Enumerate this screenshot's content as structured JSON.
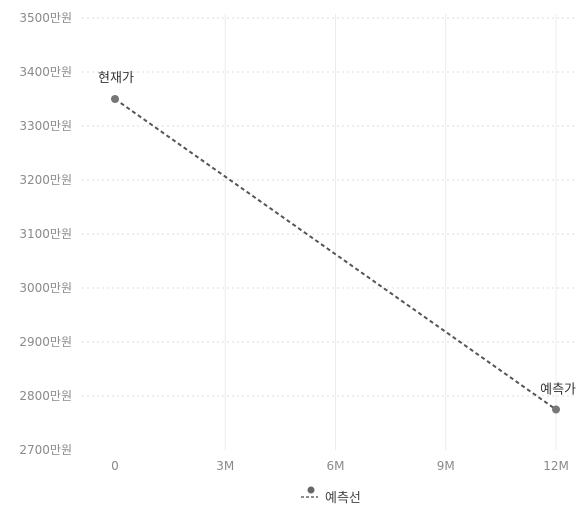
{
  "chart_data": {
    "type": "line",
    "x_ticks": [
      "0",
      "3M",
      "6M",
      "9M",
      "12M"
    ],
    "y_ticks": [
      "2700만원",
      "2800만원",
      "2900만원",
      "3000만원",
      "3100만원",
      "3200만원",
      "3300만원",
      "3400만원",
      "3500만원"
    ],
    "xlim": [
      0,
      12
    ],
    "ylim": [
      2700,
      3500
    ],
    "grid": true,
    "legend_position": "bottom-center",
    "series": [
      {
        "name": "예측선",
        "color": "#555555",
        "style": "dashed",
        "points": [
          {
            "x": 0,
            "y": 3350,
            "label": "현재가"
          },
          {
            "x": 12,
            "y": 2775,
            "label": "예측가"
          }
        ]
      }
    ]
  }
}
